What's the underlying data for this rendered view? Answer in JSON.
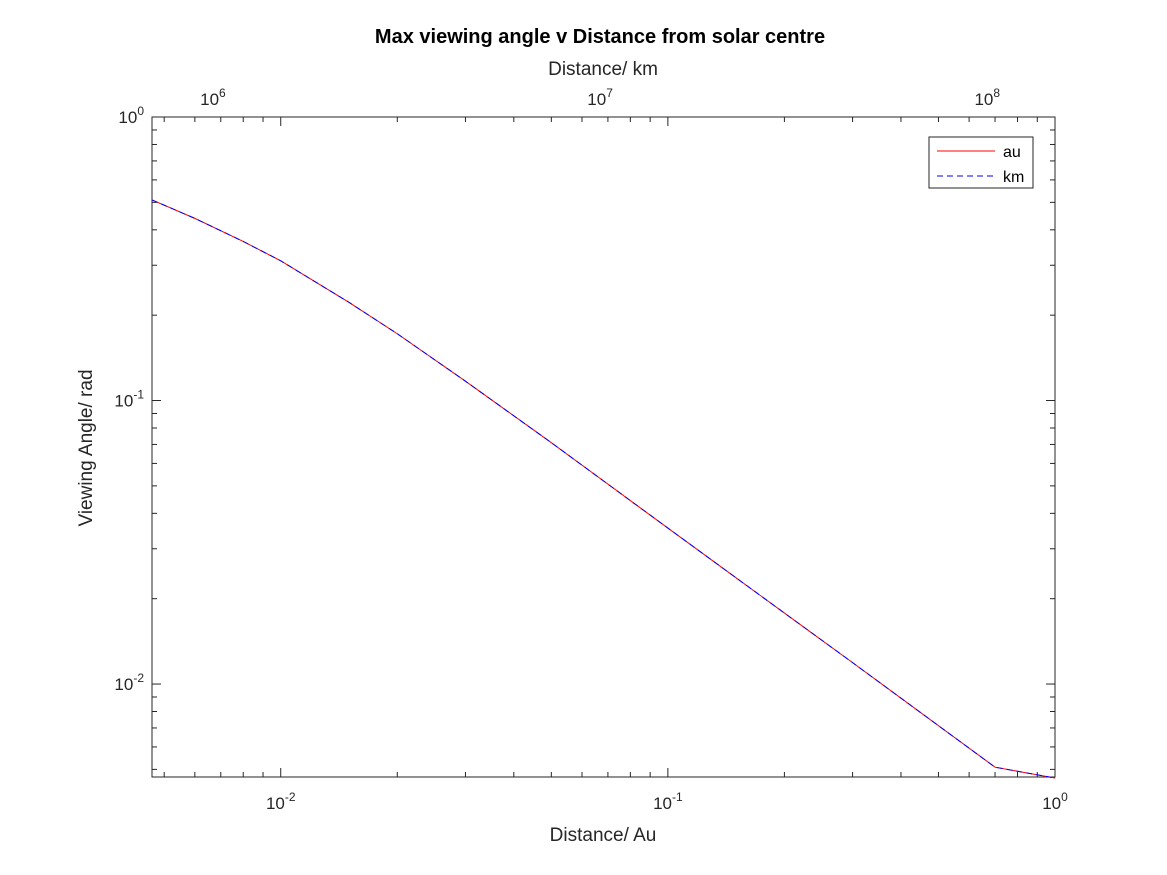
{
  "chart_data": {
    "type": "line",
    "title": "Max viewing angle v Distance from solar centre",
    "xlabel": "Distance/ Au",
    "ylabel": "Viewing Angle/ rad",
    "xlabel_top": "Distance/ km",
    "x_scale": "log",
    "y_scale": "log",
    "xlim": [
      0.00465,
      1
    ],
    "ylim": [
      0.0047,
      1
    ],
    "x2lim": [
      696000,
      149600000
    ],
    "x_ticks": [
      0.01,
      0.1,
      1
    ],
    "x_tick_labels": [
      {
        "base": "10",
        "exp": "-2"
      },
      {
        "base": "10",
        "exp": "-1"
      },
      {
        "base": "10",
        "exp": "0"
      }
    ],
    "y_ticks": [
      0.01,
      0.1,
      1
    ],
    "y_tick_labels": [
      {
        "base": "10",
        "exp": "-2"
      },
      {
        "base": "10",
        "exp": "-1"
      },
      {
        "base": "10",
        "exp": "0"
      }
    ],
    "x2_ticks": [
      1000000,
      10000000,
      100000000
    ],
    "x2_tick_labels": [
      {
        "base": "10",
        "exp": "6"
      },
      {
        "base": "10",
        "exp": "7"
      },
      {
        "base": "10",
        "exp": "8"
      }
    ],
    "legend_position": "top-right",
    "grid": false,
    "series": [
      {
        "name": "au",
        "color": "#ff0000",
        "dash": "solid",
        "x": [
          0.00465,
          0.006,
          0.008,
          0.01,
          0.015,
          0.02,
          0.03,
          0.05,
          0.07,
          0.1,
          0.15,
          0.2,
          0.3,
          0.5,
          0.7,
          1.0
        ],
        "y": [
          0.51,
          0.439,
          0.364,
          0.311,
          0.222,
          0.172,
          0.117,
          0.071,
          0.0507,
          0.0355,
          0.0237,
          0.0178,
          0.0119,
          0.00713,
          0.00509,
          0.00466
        ]
      },
      {
        "name": "km",
        "color": "#0000ff",
        "dash": "dashed",
        "x": [
          0.00465,
          0.006,
          0.008,
          0.01,
          0.015,
          0.02,
          0.03,
          0.05,
          0.07,
          0.1,
          0.15,
          0.2,
          0.3,
          0.5,
          0.7,
          1.0
        ],
        "y": [
          0.51,
          0.439,
          0.364,
          0.311,
          0.222,
          0.172,
          0.117,
          0.071,
          0.0507,
          0.0355,
          0.0237,
          0.0178,
          0.0119,
          0.00713,
          0.00509,
          0.00466
        ]
      }
    ]
  }
}
